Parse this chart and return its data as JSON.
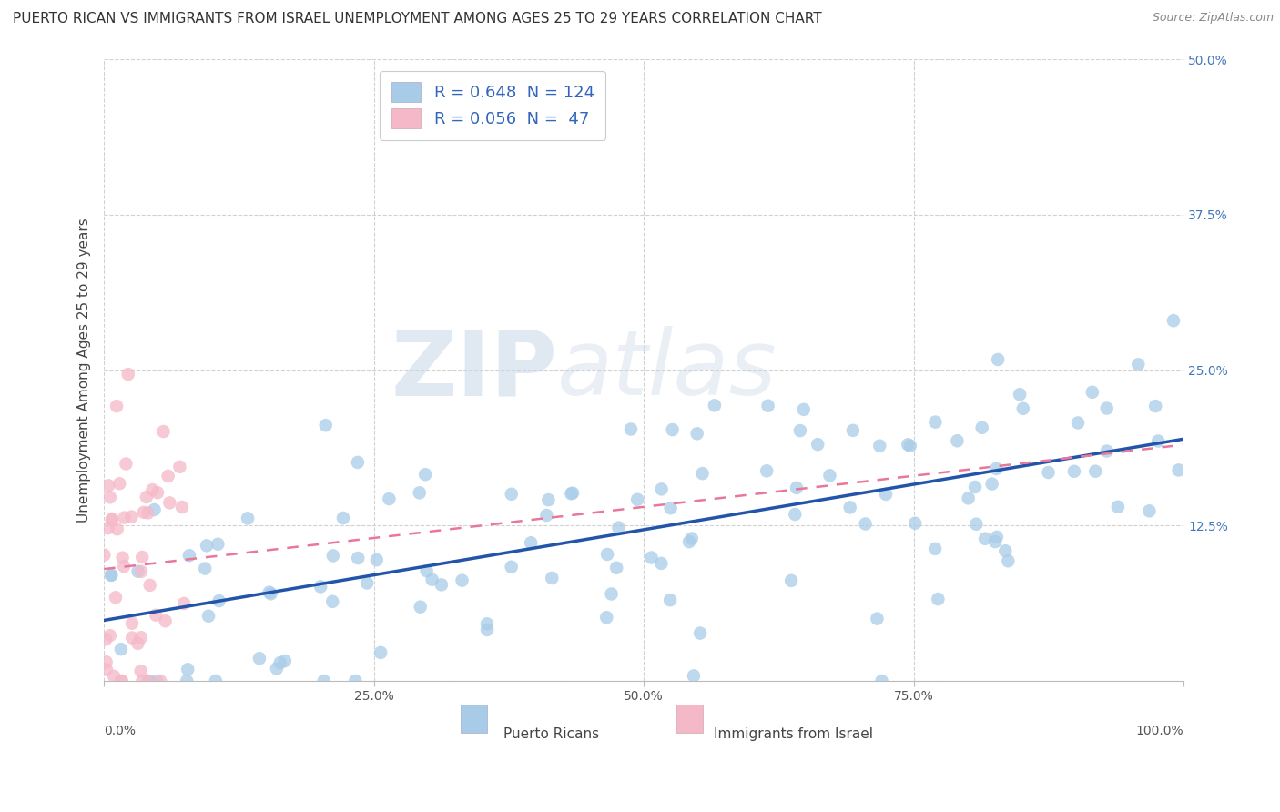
{
  "title": "PUERTO RICAN VS IMMIGRANTS FROM ISRAEL UNEMPLOYMENT AMONG AGES 25 TO 29 YEARS CORRELATION CHART",
  "source": "Source: ZipAtlas.com",
  "ylabel": "Unemployment Among Ages 25 to 29 years",
  "xlim": [
    0.0,
    1.0
  ],
  "ylim": [
    0.0,
    0.5
  ],
  "xticks": [
    0.0,
    0.25,
    0.5,
    0.75,
    1.0
  ],
  "yticks": [
    0.0,
    0.125,
    0.25,
    0.375,
    0.5
  ],
  "xticklabels_inner": [
    "",
    "25.0%",
    "50.0%",
    "75.0%",
    ""
  ],
  "yticklabels_right": [
    "",
    "12.5%",
    "25.0%",
    "37.5%",
    "50.0%"
  ],
  "x_outer_left": "0.0%",
  "x_outer_right": "100.0%",
  "blue_R": 0.648,
  "blue_N": 124,
  "pink_R": 0.056,
  "pink_N": 47,
  "blue_color": "#a8cce8",
  "pink_color": "#f5b8c8",
  "blue_line_color": "#2255aa",
  "pink_line_color": "#e8779a",
  "legend_label_blue": "Puerto Ricans",
  "legend_label_pink": "Immigrants from Israel",
  "watermark_zip": "ZIP",
  "watermark_atlas": "atlas",
  "background_color": "#ffffff",
  "title_fontsize": 11,
  "axis_label_fontsize": 11,
  "tick_fontsize": 10,
  "legend_fontsize": 13
}
